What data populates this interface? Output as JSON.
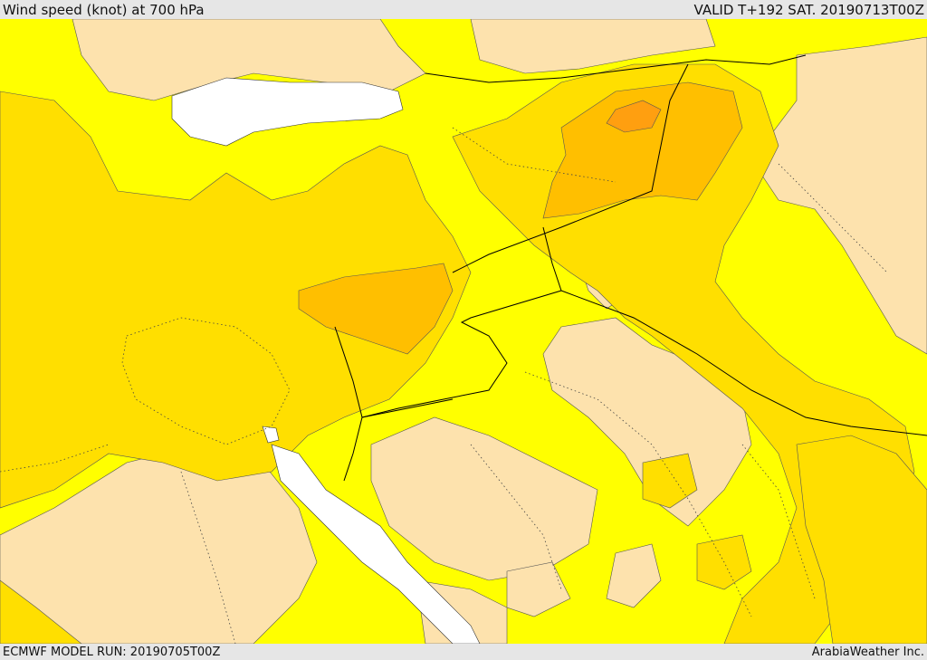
{
  "header": {
    "title": "Wind speed (knot) at 700 hPa",
    "valid": "VALID T+192 SAT. 20190713T00Z"
  },
  "footer": {
    "model_run": "ECMWF MODEL RUN: 20190705T00Z",
    "credit": "ArabiaWeather Inc."
  },
  "colors": {
    "background": "#e6e6e6",
    "band_lowest": "#fde2ad",
    "band_low": "#ffff00",
    "band_mid": "#ffdf00",
    "band_high": "#ffbf00",
    "band_highest": "#ff9f10",
    "water_no_data": "#ffffff",
    "border_line": "#000000"
  }
}
